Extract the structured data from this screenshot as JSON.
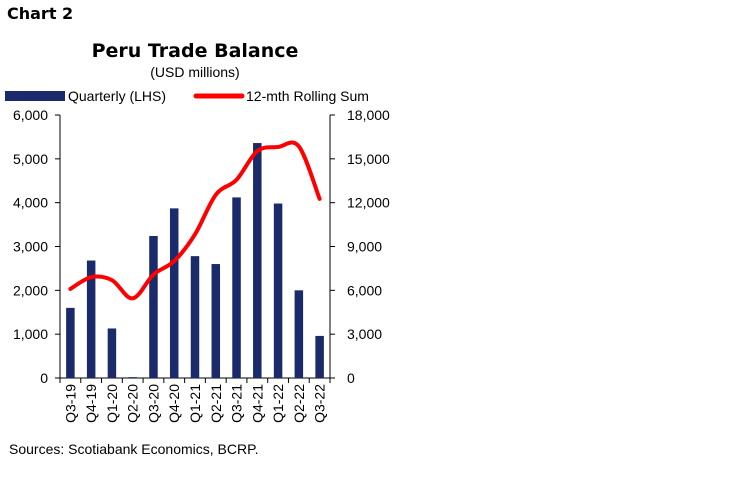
{
  "chart_label": "Chart 2",
  "source": "Sources: Scotiabank Economics, BCRP.",
  "chart_data": {
    "type": "bar",
    "title": "Peru Trade Balance",
    "subtitle": "(USD millions)",
    "categories": [
      "Q3-19",
      "Q4-19",
      "Q1-20",
      "Q2-20",
      "Q3-20",
      "Q4-20",
      "Q1-21",
      "Q2-21",
      "Q3-21",
      "Q4-21",
      "Q1-22",
      "Q2-22",
      "Q3-22"
    ],
    "series": [
      {
        "name": "Quarterly (LHS)",
        "type": "bar",
        "axis": "left",
        "color": "#1b2a6b",
        "values": [
          1600,
          2680,
          1130,
          20,
          3240,
          3870,
          2780,
          2600,
          4120,
          5360,
          3980,
          2000,
          960
        ]
      },
      {
        "name": "12-mth Rolling Sum",
        "type": "line",
        "axis": "right",
        "color": "#ff0000",
        "values": [
          6100,
          6900,
          6700,
          5450,
          7080,
          8000,
          9830,
          12540,
          13570,
          15530,
          15810,
          15850,
          12260
        ]
      }
    ],
    "y_left": {
      "min": 0,
      "max": 6000,
      "ticks": [
        0,
        1000,
        2000,
        3000,
        4000,
        5000,
        6000
      ],
      "tick_labels": [
        "0",
        "1,000",
        "2,000",
        "3,000",
        "4,000",
        "5,000",
        "6,000"
      ]
    },
    "y_right": {
      "min": 0,
      "max": 18000,
      "ticks": [
        0,
        3000,
        6000,
        9000,
        12000,
        15000,
        18000
      ],
      "tick_labels": [
        "0",
        "3,000",
        "6,000",
        "9,000",
        "12,000",
        "15,000",
        "18,000"
      ]
    },
    "grid": false,
    "legend_position": "top"
  }
}
